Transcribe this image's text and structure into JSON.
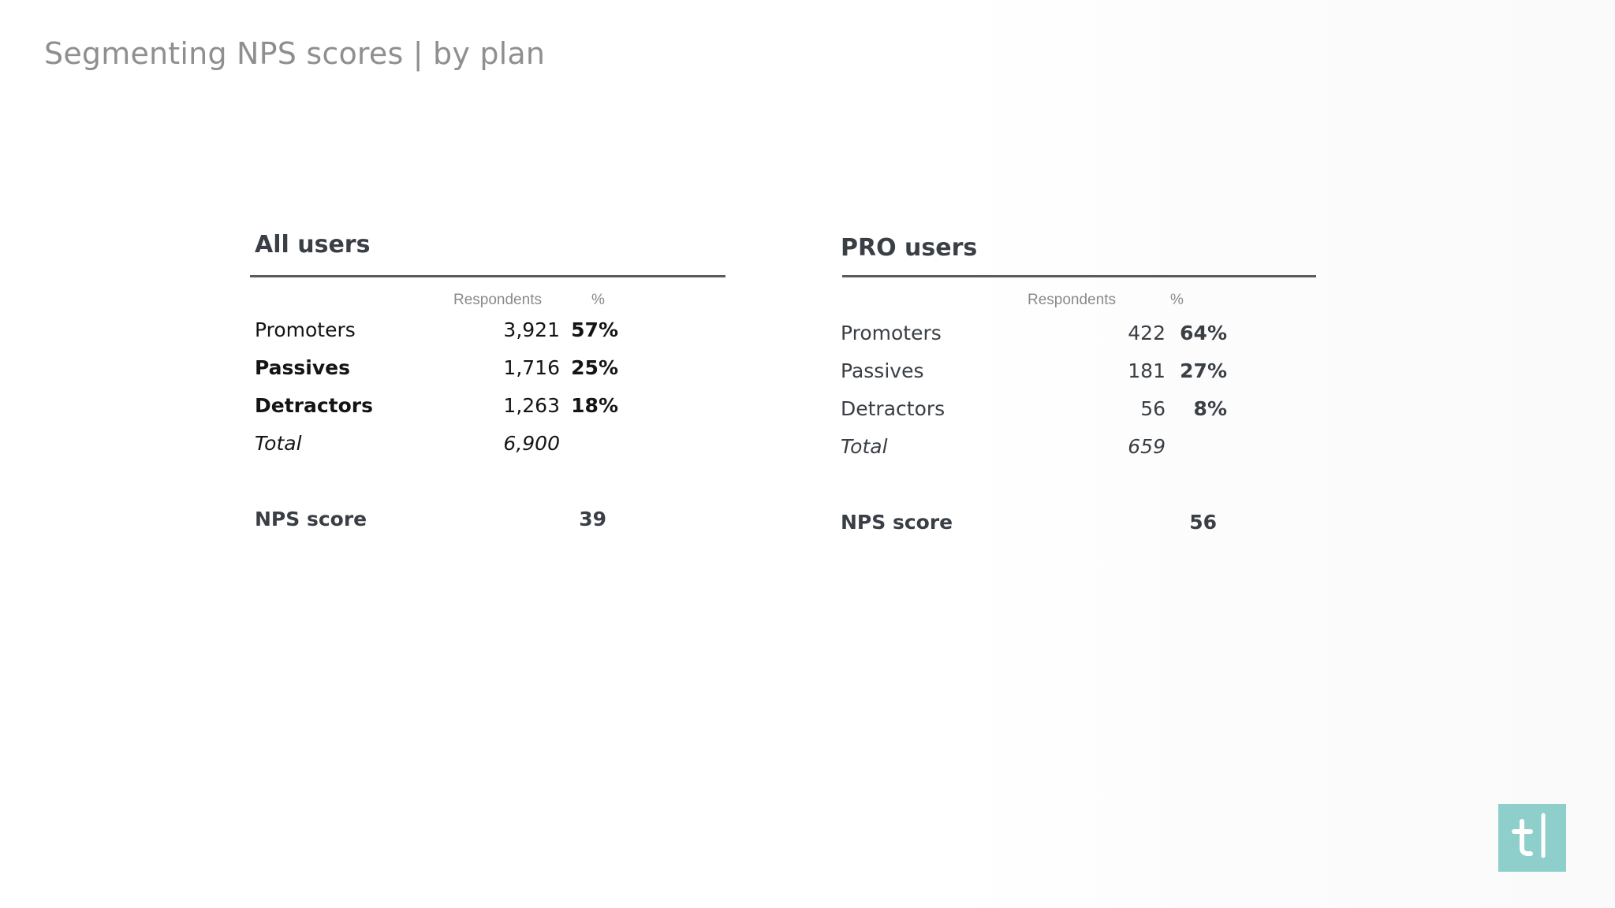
{
  "title": "Segmenting NPS scores | by plan",
  "column_headers": {
    "respondents": "Respondents",
    "percent": "%"
  },
  "panels": [
    {
      "title": "All users",
      "rows": [
        {
          "label": "Promoters",
          "count": "3,921",
          "pct": "57%"
        },
        {
          "label": "Passives",
          "count": "1,716",
          "pct": "25%"
        },
        {
          "label": "Detractors",
          "count": "1,263",
          "pct": "18%"
        },
        {
          "label": "Total",
          "count": "6,900",
          "pct": ""
        }
      ],
      "nps_label": "NPS score",
      "nps_value": "39"
    },
    {
      "title": "PRO users",
      "rows": [
        {
          "label": "Promoters",
          "count": "422",
          "pct": "64%"
        },
        {
          "label": "Passives",
          "count": "181",
          "pct": "27%"
        },
        {
          "label": "Detractors",
          "count": "56",
          "pct": "8%"
        },
        {
          "label": "Total",
          "count": "659",
          "pct": ""
        }
      ],
      "nps_label": "NPS score",
      "nps_value": "56"
    }
  ],
  "logo": {
    "text": "t|",
    "color": "#8ecfcb"
  }
}
